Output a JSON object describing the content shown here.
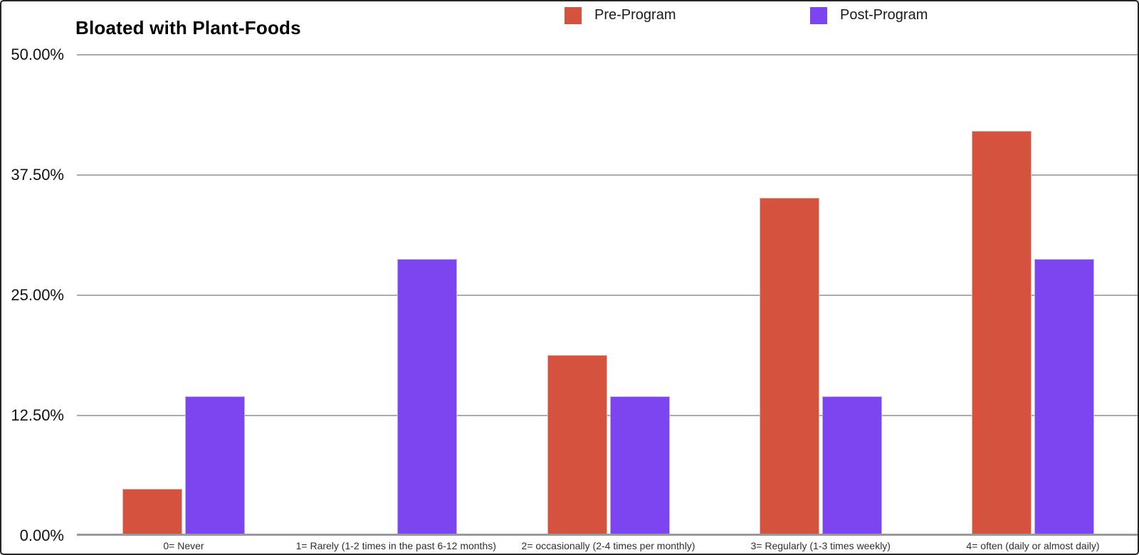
{
  "chart_data": {
    "type": "bar",
    "title": "Bloated with Plant-Foods",
    "categories": [
      "0= Never",
      "1= Rarely (1-2 times in the past 6-12 months)",
      "2= occasionally (2-4 times per monthly)",
      "3= Regularly (1-3 times weekly)",
      "4= often (daily or almost daily)"
    ],
    "series": [
      {
        "name": "Pre-Program",
        "color": "#D5523F",
        "values": [
          4.65,
          0,
          18.6,
          34.88,
          41.86
        ]
      },
      {
        "name": "Post-Program",
        "color": "#7D45EF",
        "values": [
          14.29,
          28.57,
          14.29,
          14.29,
          28.57
        ]
      }
    ],
    "ylabel": "",
    "xlabel": "",
    "ylim": [
      0,
      50
    ],
    "ytick_labels": [
      "0.00%",
      "12.50%",
      "25.00%",
      "37.50%",
      "50.00%"
    ],
    "ytick_values": [
      0,
      12.5,
      25,
      37.5,
      50
    ],
    "grid": true,
    "legend_position": "top"
  }
}
